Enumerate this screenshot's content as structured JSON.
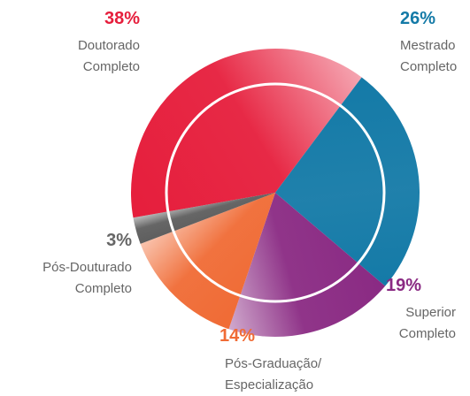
{
  "chart_data": {
    "type": "pie",
    "categories": [
      "Doutorado Completo",
      "Mestrado Completo",
      "Superior Completo",
      "Pós-Graduação/ Especialização",
      "Pós-Douturado Completo"
    ],
    "values": [
      38,
      26,
      19,
      14,
      3
    ],
    "value_labels": [
      "38%",
      "26%",
      "19%",
      "14%",
      "3%"
    ],
    "colors": [
      "#e61e3c",
      "#147aa7",
      "#8a2a83",
      "#f06b35",
      "#5e5e5e"
    ]
  }
}
